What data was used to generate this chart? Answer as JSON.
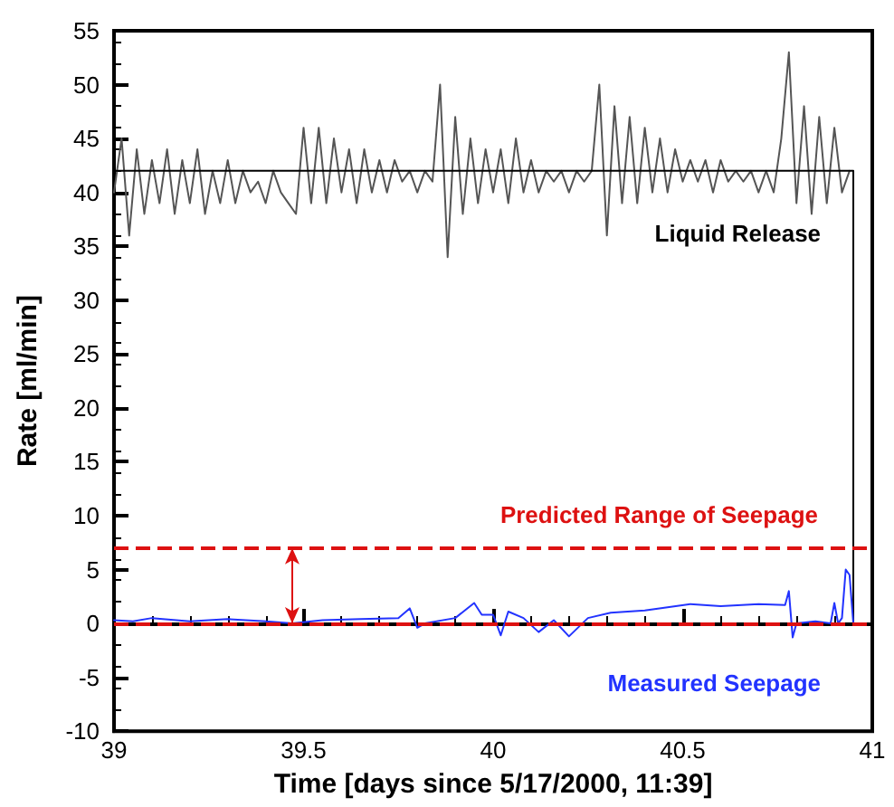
{
  "chart_data": {
    "type": "line",
    "xlabel": "Time [days since 5/17/2000, 11:39]",
    "ylabel": "Rate [ml/min]",
    "xlim": [
      39,
      41
    ],
    "xticks": [
      39,
      39.5,
      40,
      40.5,
      41
    ],
    "ylim": [
      -10,
      55
    ],
    "yticks": [
      -10,
      -5,
      0,
      5,
      10,
      15,
      20,
      25,
      30,
      35,
      40,
      45,
      50,
      55
    ],
    "grid": false,
    "marker": "none",
    "line_style": "solid",
    "series": [
      {
        "color": "#555555",
        "x": [
          39.0,
          39.02,
          39.04,
          39.06,
          39.08,
          39.1,
          39.12,
          39.14,
          39.16,
          39.18,
          39.2,
          39.22,
          39.24,
          39.26,
          39.28,
          39.3,
          39.32,
          39.34,
          39.36,
          39.38,
          39.4,
          39.42,
          39.44,
          39.46,
          39.48,
          39.5,
          39.52,
          39.54,
          39.56,
          39.58,
          39.6,
          39.62,
          39.64,
          39.66,
          39.68,
          39.7,
          39.72,
          39.74,
          39.76,
          39.78,
          39.8,
          39.82,
          39.84,
          39.86,
          39.88,
          39.9,
          39.92,
          39.94,
          39.96,
          39.98,
          40.0,
          40.02,
          40.04,
          40.06,
          40.08,
          40.1,
          40.12,
          40.14,
          40.16,
          40.18,
          40.2,
          40.22,
          40.24,
          40.26,
          40.28,
          40.3,
          40.32,
          40.34,
          40.36,
          40.38,
          40.4,
          40.42,
          40.44,
          40.46,
          40.48,
          40.5,
          40.52,
          40.54,
          40.56,
          40.58,
          40.6,
          40.62,
          40.64,
          40.66,
          40.68,
          40.7,
          40.72,
          40.74,
          40.76,
          40.78,
          40.8,
          40.82,
          40.84,
          40.86,
          40.88,
          40.9,
          40.92,
          40.94
        ],
        "values": [
          40,
          45,
          36,
          44,
          38,
          43,
          39,
          44,
          38,
          43,
          39,
          44,
          38,
          42,
          39,
          43,
          39,
          42,
          40,
          41,
          39,
          42,
          40,
          39,
          38,
          46,
          39,
          46,
          39,
          45,
          40,
          44,
          39,
          44,
          40,
          43,
          40,
          43,
          41,
          42,
          40,
          42,
          41,
          50,
          34,
          47,
          38,
          45,
          39,
          44,
          40,
          44,
          39,
          45,
          40,
          43,
          40,
          42,
          41,
          42,
          40,
          42,
          41,
          42,
          50,
          36,
          48,
          39,
          47,
          39,
          46,
          40,
          45,
          40,
          44,
          41,
          43,
          41,
          43,
          40,
          43,
          41,
          42,
          41,
          42,
          40,
          42,
          40,
          45,
          53,
          39,
          48,
          38,
          47,
          39,
          46,
          40,
          42
        ]
      },
      {
        "name": "Liquid Release",
        "color": "#000000",
        "x": [
          39,
          40.95,
          40.95
        ],
        "values": [
          42,
          42,
          0
        ]
      },
      {
        "name": "Measured Seepage",
        "color": "#2233ff",
        "x": [
          39,
          39.05,
          39.1,
          39.2,
          39.3,
          39.4,
          39.47,
          39.55,
          39.65,
          39.75,
          39.78,
          39.8,
          39.82,
          39.9,
          39.95,
          39.97,
          40.0,
          40.02,
          40.04,
          40.08,
          40.12,
          40.16,
          40.2,
          40.25,
          40.31,
          40.4,
          40.52,
          40.6,
          40.7,
          40.77,
          40.78,
          40.79,
          40.8,
          40.85,
          40.89,
          40.9,
          40.91,
          40.92,
          40.93,
          40.94,
          40.95
        ],
        "values": [
          0.3,
          0.2,
          0.5,
          0.2,
          0.4,
          0.2,
          0,
          0.3,
          0.4,
          0.5,
          1.4,
          -0.4,
          0,
          0.5,
          1.9,
          0.8,
          0.8,
          -1.1,
          1.1,
          0.5,
          -0.8,
          0.3,
          -1.2,
          0.5,
          1,
          1.2,
          1.8,
          1.6,
          1.8,
          1.7,
          3,
          -1.3,
          0,
          0.2,
          0,
          1.9,
          0,
          0.5,
          5,
          4.5,
          0
        ]
      }
    ],
    "ref_lines": [
      {
        "axis": "y",
        "value": 7,
        "label": "Predicted Range of Seepage",
        "color": "#dd1111",
        "line_style": "dashed"
      },
      {
        "axis": "y",
        "value": 0,
        "color": "#dd1111",
        "line_style": "dashed"
      }
    ]
  }
}
